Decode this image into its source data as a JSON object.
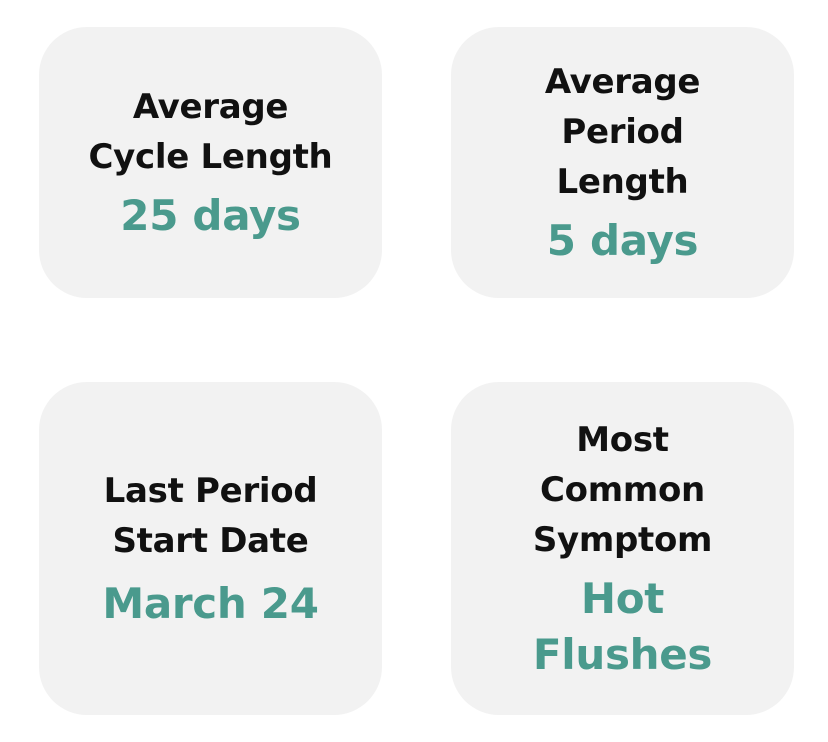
{
  "colors": {
    "card_background": "#f2f2f2",
    "label_text": "#111111",
    "value_accent": "#4a9a8d"
  },
  "cards": [
    {
      "label_lines": [
        "Average",
        "Cycle Length"
      ],
      "value_lines": [
        "25 days"
      ]
    },
    {
      "label_lines": [
        "Average",
        "Period",
        "Length"
      ],
      "value_lines": [
        "5 days"
      ]
    },
    {
      "label_lines": [
        "Last Period",
        "Start Date"
      ],
      "value_lines": [
        "March 24"
      ]
    },
    {
      "label_lines": [
        "Most",
        "Common",
        "Symptom"
      ],
      "value_lines": [
        "Hot",
        "Flushes"
      ]
    }
  ]
}
